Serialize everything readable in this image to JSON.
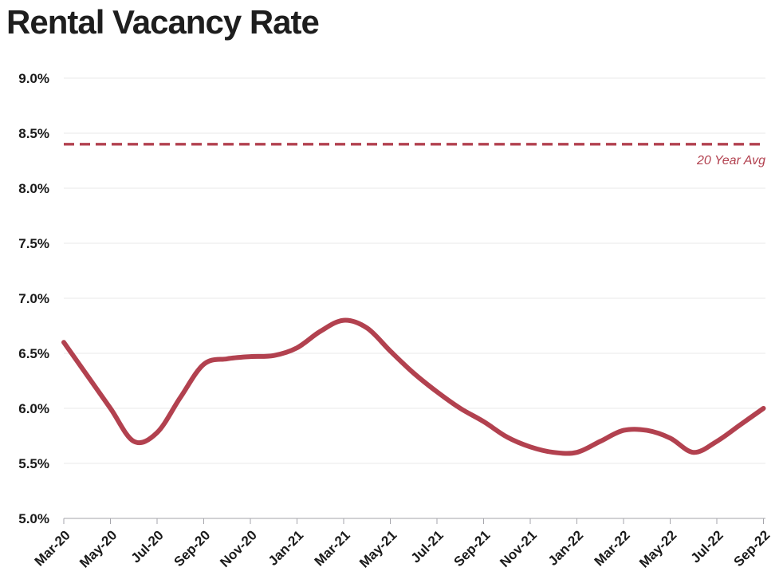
{
  "title": "Rental Vacancy Rate",
  "colors": {
    "series_line": "#b2414f",
    "avg_line": "#b2414f",
    "avg_label_text": "#b2414f",
    "title_text": "#1e1e1e",
    "axis_text": "#1a1a1a",
    "gridline": "#e8e8ea",
    "axis_baseline": "#c2c2c6",
    "background": "#ffffff"
  },
  "chart_data": {
    "type": "line",
    "title": "Rental Vacancy Rate",
    "x": [
      "Mar-20",
      "Apr-20",
      "May-20",
      "Jun-20",
      "Jul-20",
      "Aug-20",
      "Sep-20",
      "Oct-20",
      "Nov-20",
      "Dec-20",
      "Jan-21",
      "Feb-21",
      "Mar-21",
      "Apr-21",
      "May-21",
      "Jun-21",
      "Jul-21",
      "Aug-21",
      "Sep-21",
      "Oct-21",
      "Nov-21",
      "Dec-21",
      "Jan-22",
      "Feb-22",
      "Mar-22",
      "Apr-22",
      "May-22",
      "Jun-22",
      "Jul-22",
      "Aug-22",
      "Sep-22"
    ],
    "series": [
      {
        "name": "Rental Vacancy Rate",
        "values": [
          6.6,
          6.3,
          6.0,
          5.7,
          5.78,
          6.1,
          6.4,
          6.45,
          6.47,
          6.48,
          6.55,
          6.7,
          6.8,
          6.73,
          6.52,
          6.32,
          6.15,
          6.0,
          5.88,
          5.74,
          5.65,
          5.6,
          5.6,
          5.7,
          5.8,
          5.8,
          5.73,
          5.6,
          5.7,
          5.85,
          6.0
        ]
      }
    ],
    "x_label_every": 2,
    "x_label_rotation": -45,
    "y_ticks": [
      9.0,
      8.5,
      8.0,
      7.5,
      7.0,
      6.5,
      6.0,
      5.5,
      5.0
    ],
    "y_tick_labels": [
      "9.0%",
      "8.5%",
      "8.0%",
      "7.5%",
      "7.0%",
      "6.5%",
      "6.0%",
      "5.5%",
      "5.0%"
    ],
    "ylim": [
      5.0,
      9.0
    ],
    "grid": "horizontal",
    "smoothing": true,
    "legend": "none",
    "reference_line": {
      "label": "20 Year Avg",
      "value": 8.4,
      "style": "dashed"
    }
  }
}
